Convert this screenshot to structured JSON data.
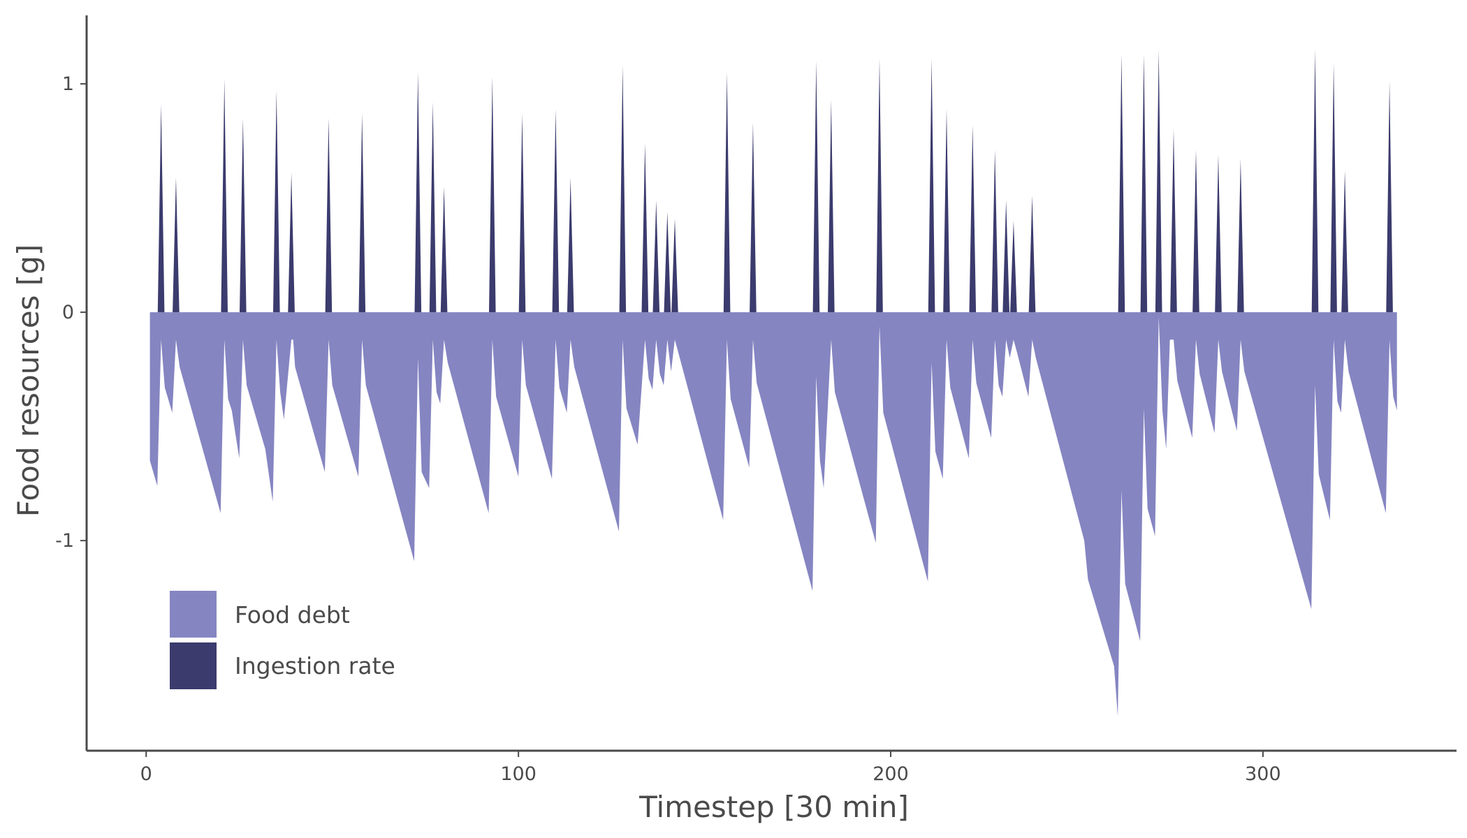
{
  "chart_data": {
    "type": "area",
    "xlabel": "Timestep [30 min]",
    "ylabel": "Food resources [g]",
    "xlim": [
      -16,
      352
    ],
    "ylim": [
      -1.92,
      1.3
    ],
    "x_ticks": [
      0,
      100,
      200,
      300
    ],
    "y_ticks": [
      -1,
      0,
      1
    ],
    "x_tick_labels": [
      "0",
      "100",
      "200",
      "300"
    ],
    "y_tick_labels": [
      "-1",
      "0",
      "1"
    ],
    "grid": false,
    "legend_position": "bottom-left",
    "colors": {
      "food_debt": "#8585c2",
      "ingestion_rate": "#3b3b6e",
      "axis": "#4a4a4a"
    },
    "legend": [
      {
        "key": "food_debt",
        "label": "Food debt"
      },
      {
        "key": "ingestion_rate",
        "label": "Ingestion rate"
      }
    ],
    "series": [
      {
        "name": "Ingestion rate",
        "key": "ingestion_rate",
        "type": "spikes",
        "x": [
          4,
          8,
          21,
          26,
          35,
          39,
          49,
          58,
          73,
          77,
          80,
          93,
          101,
          110,
          114,
          128,
          134,
          137,
          140,
          142,
          156,
          163,
          180,
          184,
          197,
          211,
          215,
          222,
          228,
          231,
          233,
          238,
          262,
          268,
          272,
          276,
          282,
          288,
          294,
          314,
          319,
          322,
          334
        ],
        "values": [
          0.91,
          0.59,
          1.02,
          0.85,
          0.97,
          0.61,
          0.85,
          0.87,
          1.05,
          0.92,
          0.55,
          1.03,
          0.87,
          0.89,
          0.59,
          1.08,
          0.74,
          0.49,
          0.44,
          0.41,
          1.05,
          0.83,
          1.1,
          0.93,
          1.11,
          1.11,
          0.89,
          0.82,
          0.71,
          0.49,
          0.4,
          0.51,
          1.13,
          1.13,
          1.15,
          0.8,
          0.71,
          0.69,
          0.67,
          1.15,
          1.09,
          0.62,
          1.01
        ]
      },
      {
        "name": "Food debt",
        "key": "food_debt",
        "type": "area",
        "x": [
          1,
          1,
          3,
          4,
          5,
          7,
          8,
          9,
          20,
          21,
          22,
          23,
          25,
          26,
          27,
          32,
          34,
          35,
          36,
          37,
          39,
          39.5,
          40,
          48,
          49,
          50,
          57,
          58,
          59,
          72,
          73,
          74,
          76,
          77,
          78,
          79,
          80,
          81,
          92,
          93,
          94,
          100,
          101,
          102,
          109,
          110,
          111,
          113,
          114,
          115,
          127,
          128,
          129,
          132,
          134,
          135,
          136,
          137,
          138,
          139,
          140,
          141,
          142,
          143,
          155,
          156,
          157,
          162,
          163,
          164,
          179,
          180,
          181,
          182,
          184,
          185,
          196,
          197,
          198,
          210,
          211,
          212,
          214,
          215,
          216,
          221,
          222,
          223,
          227,
          228,
          229,
          230,
          231,
          232,
          233,
          234,
          237,
          238,
          239,
          252,
          253,
          260,
          261,
          262,
          263,
          267,
          268,
          269,
          271,
          272,
          273,
          274,
          275,
          276,
          277,
          281,
          282,
          283,
          287,
          288,
          289,
          293,
          294,
          295,
          313,
          314,
          315,
          318,
          319,
          320,
          321,
          322,
          323,
          333,
          334,
          335,
          336,
          336
        ],
        "values": [
          0,
          -0.65,
          -0.76,
          -0.12,
          -0.33,
          -0.44,
          -0.12,
          -0.24,
          -0.88,
          -0.12,
          -0.38,
          -0.43,
          -0.64,
          -0.12,
          -0.32,
          -0.6,
          -0.83,
          -0.12,
          -0.35,
          -0.47,
          -0.12,
          -0.12,
          -0.24,
          -0.7,
          -0.12,
          -0.32,
          -0.72,
          -0.12,
          -0.32,
          -1.09,
          -0.2,
          -0.7,
          -0.77,
          -0.12,
          -0.35,
          -0.4,
          -0.12,
          -0.22,
          -0.88,
          -0.12,
          -0.37,
          -0.72,
          -0.12,
          -0.32,
          -0.73,
          -0.12,
          -0.33,
          -0.44,
          -0.12,
          -0.24,
          -0.96,
          -0.12,
          -0.42,
          -0.58,
          -0.12,
          -0.29,
          -0.34,
          -0.12,
          -0.27,
          -0.32,
          -0.12,
          -0.26,
          -0.12,
          -0.18,
          -0.91,
          -0.12,
          -0.38,
          -0.68,
          -0.12,
          -0.31,
          -1.22,
          -0.28,
          -0.65,
          -0.77,
          -0.12,
          -0.35,
          -1.01,
          -0.06,
          -0.44,
          -1.18,
          -0.22,
          -0.61,
          -0.73,
          -0.12,
          -0.33,
          -0.64,
          -0.12,
          -0.31,
          -0.55,
          -0.12,
          -0.32,
          -0.37,
          -0.12,
          -0.2,
          -0.12,
          -0.18,
          -0.37,
          -0.12,
          -0.2,
          -1.0,
          -1.17,
          -1.55,
          -1.77,
          -0.78,
          -1.19,
          -1.44,
          -0.42,
          -0.86,
          -0.98,
          -0.02,
          -0.43,
          -0.6,
          -0.12,
          -0.12,
          -0.3,
          -0.55,
          -0.12,
          -0.27,
          -0.53,
          -0.12,
          -0.26,
          -0.52,
          -0.12,
          -0.26,
          -1.3,
          -0.32,
          -0.71,
          -0.91,
          -0.12,
          -0.39,
          -0.44,
          -0.12,
          -0.26,
          -0.88,
          -0.12,
          -0.37,
          -0.43,
          0
        ]
      }
    ]
  }
}
